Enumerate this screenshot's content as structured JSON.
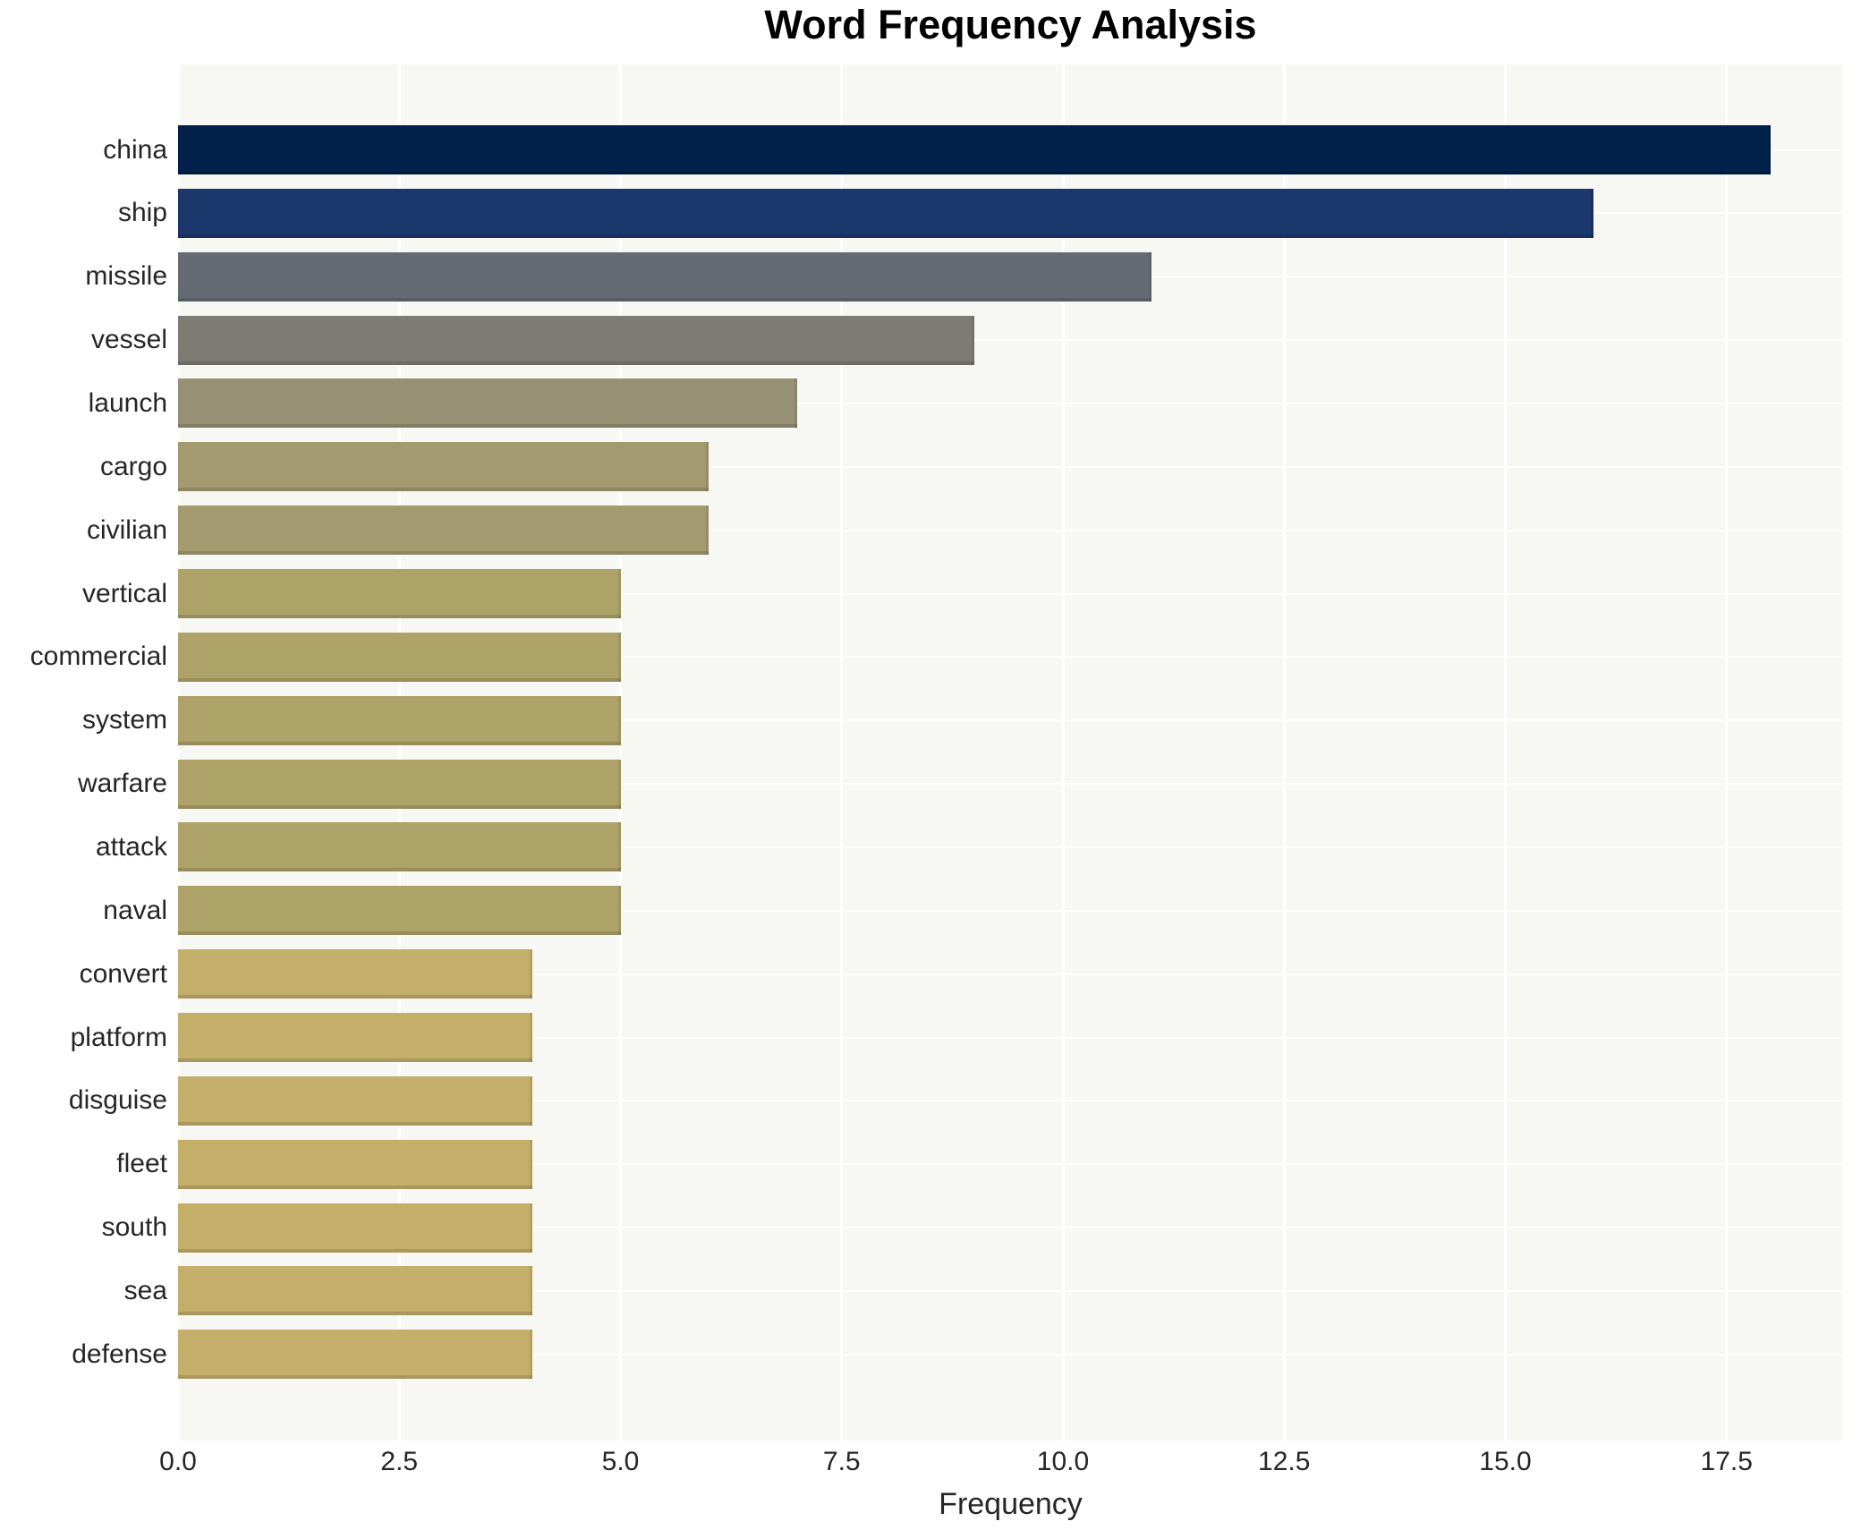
{
  "chart_data": {
    "type": "bar",
    "orientation": "horizontal",
    "title": "Word Frequency Analysis",
    "xlabel": "Frequency",
    "ylabel": "",
    "categories": [
      "china",
      "ship",
      "missile",
      "vessel",
      "launch",
      "cargo",
      "civilian",
      "vertical",
      "commercial",
      "system",
      "warfare",
      "attack",
      "naval",
      "convert",
      "platform",
      "disguise",
      "fleet",
      "south",
      "sea",
      "defense"
    ],
    "values": [
      18,
      16,
      11,
      9,
      7,
      6,
      6,
      5,
      5,
      5,
      5,
      5,
      5,
      4,
      4,
      4,
      4,
      4,
      4,
      4
    ],
    "bar_colors": [
      "#01214a",
      "#1b386c",
      "#666a73",
      "#7c7b74",
      "#969075",
      "#a39a70",
      "#a39a70",
      "#ada268",
      "#ada268",
      "#ada268",
      "#ada268",
      "#ada268",
      "#ada268",
      "#c3ae6a",
      "#c3ae6a",
      "#c3ae6a",
      "#c3ae6a",
      "#c3ae6a",
      "#c3ae6a",
      "#c3ae6a"
    ],
    "xlim": [
      0,
      18.8
    ],
    "x_ticks": [
      0,
      2.5,
      5,
      7.5,
      10,
      12.5,
      15,
      17.5
    ],
    "x_tick_labels": [
      "0.0",
      "2.5",
      "5.0",
      "7.5",
      "10.0",
      "12.5",
      "15.0",
      "17.5"
    ],
    "grid": true,
    "legend": "none",
    "plot_background": "#f7f7f4",
    "grid_color": "#ffffff",
    "text_color": "#262626",
    "title_color": "#000000"
  }
}
